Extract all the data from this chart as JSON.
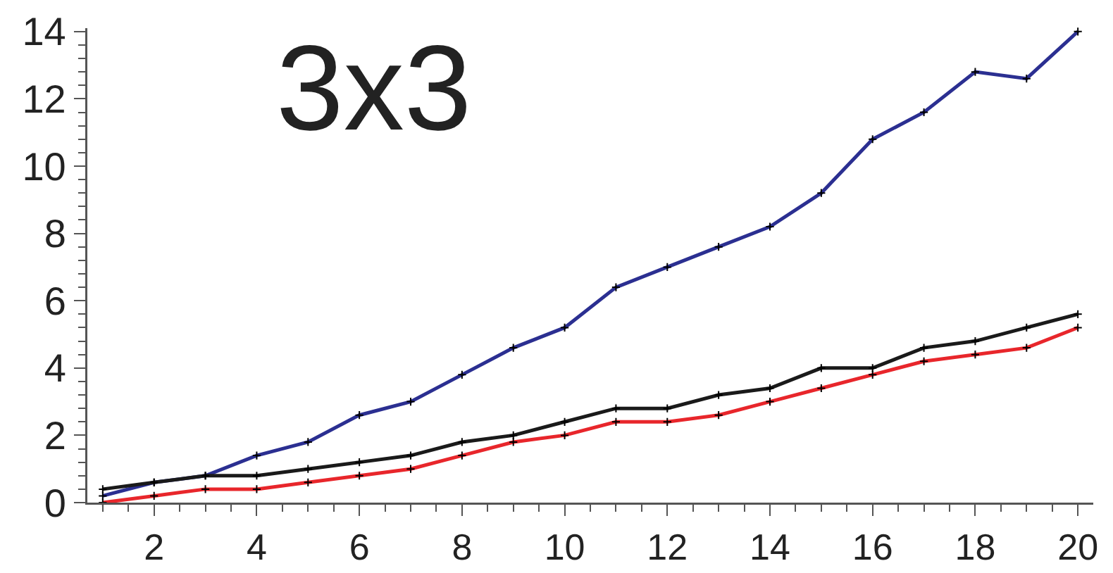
{
  "chart_data": {
    "type": "line",
    "title": "3x3",
    "x": [
      1,
      2,
      3,
      4,
      5,
      6,
      7,
      8,
      9,
      10,
      11,
      12,
      13,
      14,
      15,
      16,
      17,
      18,
      19,
      20
    ],
    "series": [
      {
        "color": "#2b2f91",
        "values": [
          0.2,
          0.6,
          0.8,
          1.4,
          1.8,
          2.6,
          3.0,
          3.8,
          4.6,
          5.2,
          6.4,
          7.0,
          7.6,
          8.2,
          9.2,
          10.8,
          11.6,
          12.8,
          12.6,
          14.0
        ]
      },
      {
        "color": "#1a1a1a",
        "values": [
          0.4,
          0.6,
          0.8,
          0.8,
          1.0,
          1.2,
          1.4,
          1.8,
          2.0,
          2.4,
          2.8,
          2.8,
          3.2,
          3.4,
          4.0,
          4.0,
          4.6,
          4.8,
          5.2,
          5.6
        ]
      },
      {
        "color": "#e8262b",
        "values": [
          0,
          0.2,
          0.4,
          0.4,
          0.6,
          0.8,
          1.0,
          1.4,
          1.8,
          2.0,
          2.4,
          2.4,
          2.6,
          3.0,
          3.4,
          3.8,
          4.2,
          4.4,
          4.6,
          5.2
        ]
      }
    ],
    "xlim": [
      0.7,
      20.3
    ],
    "ylim": [
      0,
      14.1
    ],
    "xticks": [
      2,
      4,
      6,
      8,
      10,
      12,
      14,
      16,
      18,
      20
    ],
    "yticks": [
      0,
      2,
      4,
      6,
      8,
      10,
      12,
      14
    ],
    "grid": false,
    "marker": "cross",
    "line_style": "solid"
  }
}
